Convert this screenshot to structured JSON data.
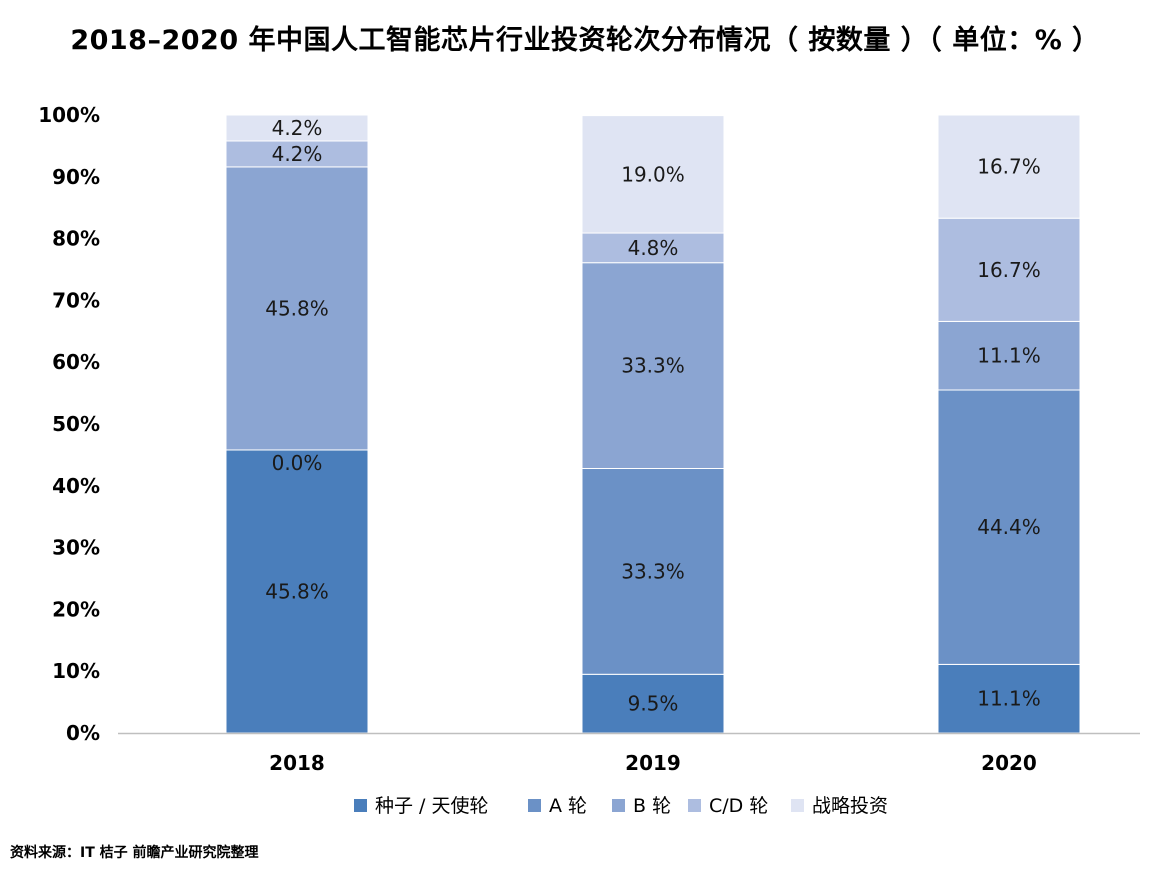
{
  "chart_data": {
    "type": "bar",
    "stacked": true,
    "title": "2018–2020 年中国人工智能芯片行业投资轮次分布情况（ 按数量 ）（ 单位：% ）",
    "categories": [
      "2018",
      "2019",
      "2020"
    ],
    "y_tick_labels": [
      "0%",
      "10%",
      "20%",
      "30%",
      "40%",
      "50%",
      "60%",
      "70%",
      "80%",
      "90%",
      "100%"
    ],
    "ylim": [
      0,
      100
    ],
    "grid": false,
    "legend_position": "bottom",
    "series": [
      {
        "name": "种子 / 天使轮",
        "color": "#4a7ebb",
        "values": [
          45.8,
          9.5,
          11.1
        ],
        "labels": [
          "45.8%",
          "9.5%",
          "11.1%"
        ]
      },
      {
        "name": "A 轮",
        "color": "#6b91c6",
        "values": [
          0,
          33.3,
          44.4
        ],
        "labels": [
          "",
          "33.3%",
          "44.4%"
        ]
      },
      {
        "name": "B 轮",
        "color": "#8ba5d2",
        "values": [
          45.8,
          33.3,
          11.1
        ],
        "labels": [
          "45.8%",
          "33.3%",
          "11.1%"
        ]
      },
      {
        "name": "C/D 轮",
        "color": "#adbde0",
        "values": [
          4.2,
          4.8,
          16.7
        ],
        "labels": [
          "4.2%",
          "4.8%",
          "16.7%"
        ]
      },
      {
        "name": "战略投资",
        "color": "#dfe4f3",
        "values": [
          4.2,
          19.0,
          16.7
        ],
        "labels": [
          "4.2%",
          "19.0%",
          "16.7%"
        ]
      }
    ],
    "annotations": [
      {
        "category": "2018",
        "series": "A 轮",
        "text": "0.0%"
      }
    ]
  },
  "source": "资料来源：IT 桔子  前瞻产业研究院整理"
}
